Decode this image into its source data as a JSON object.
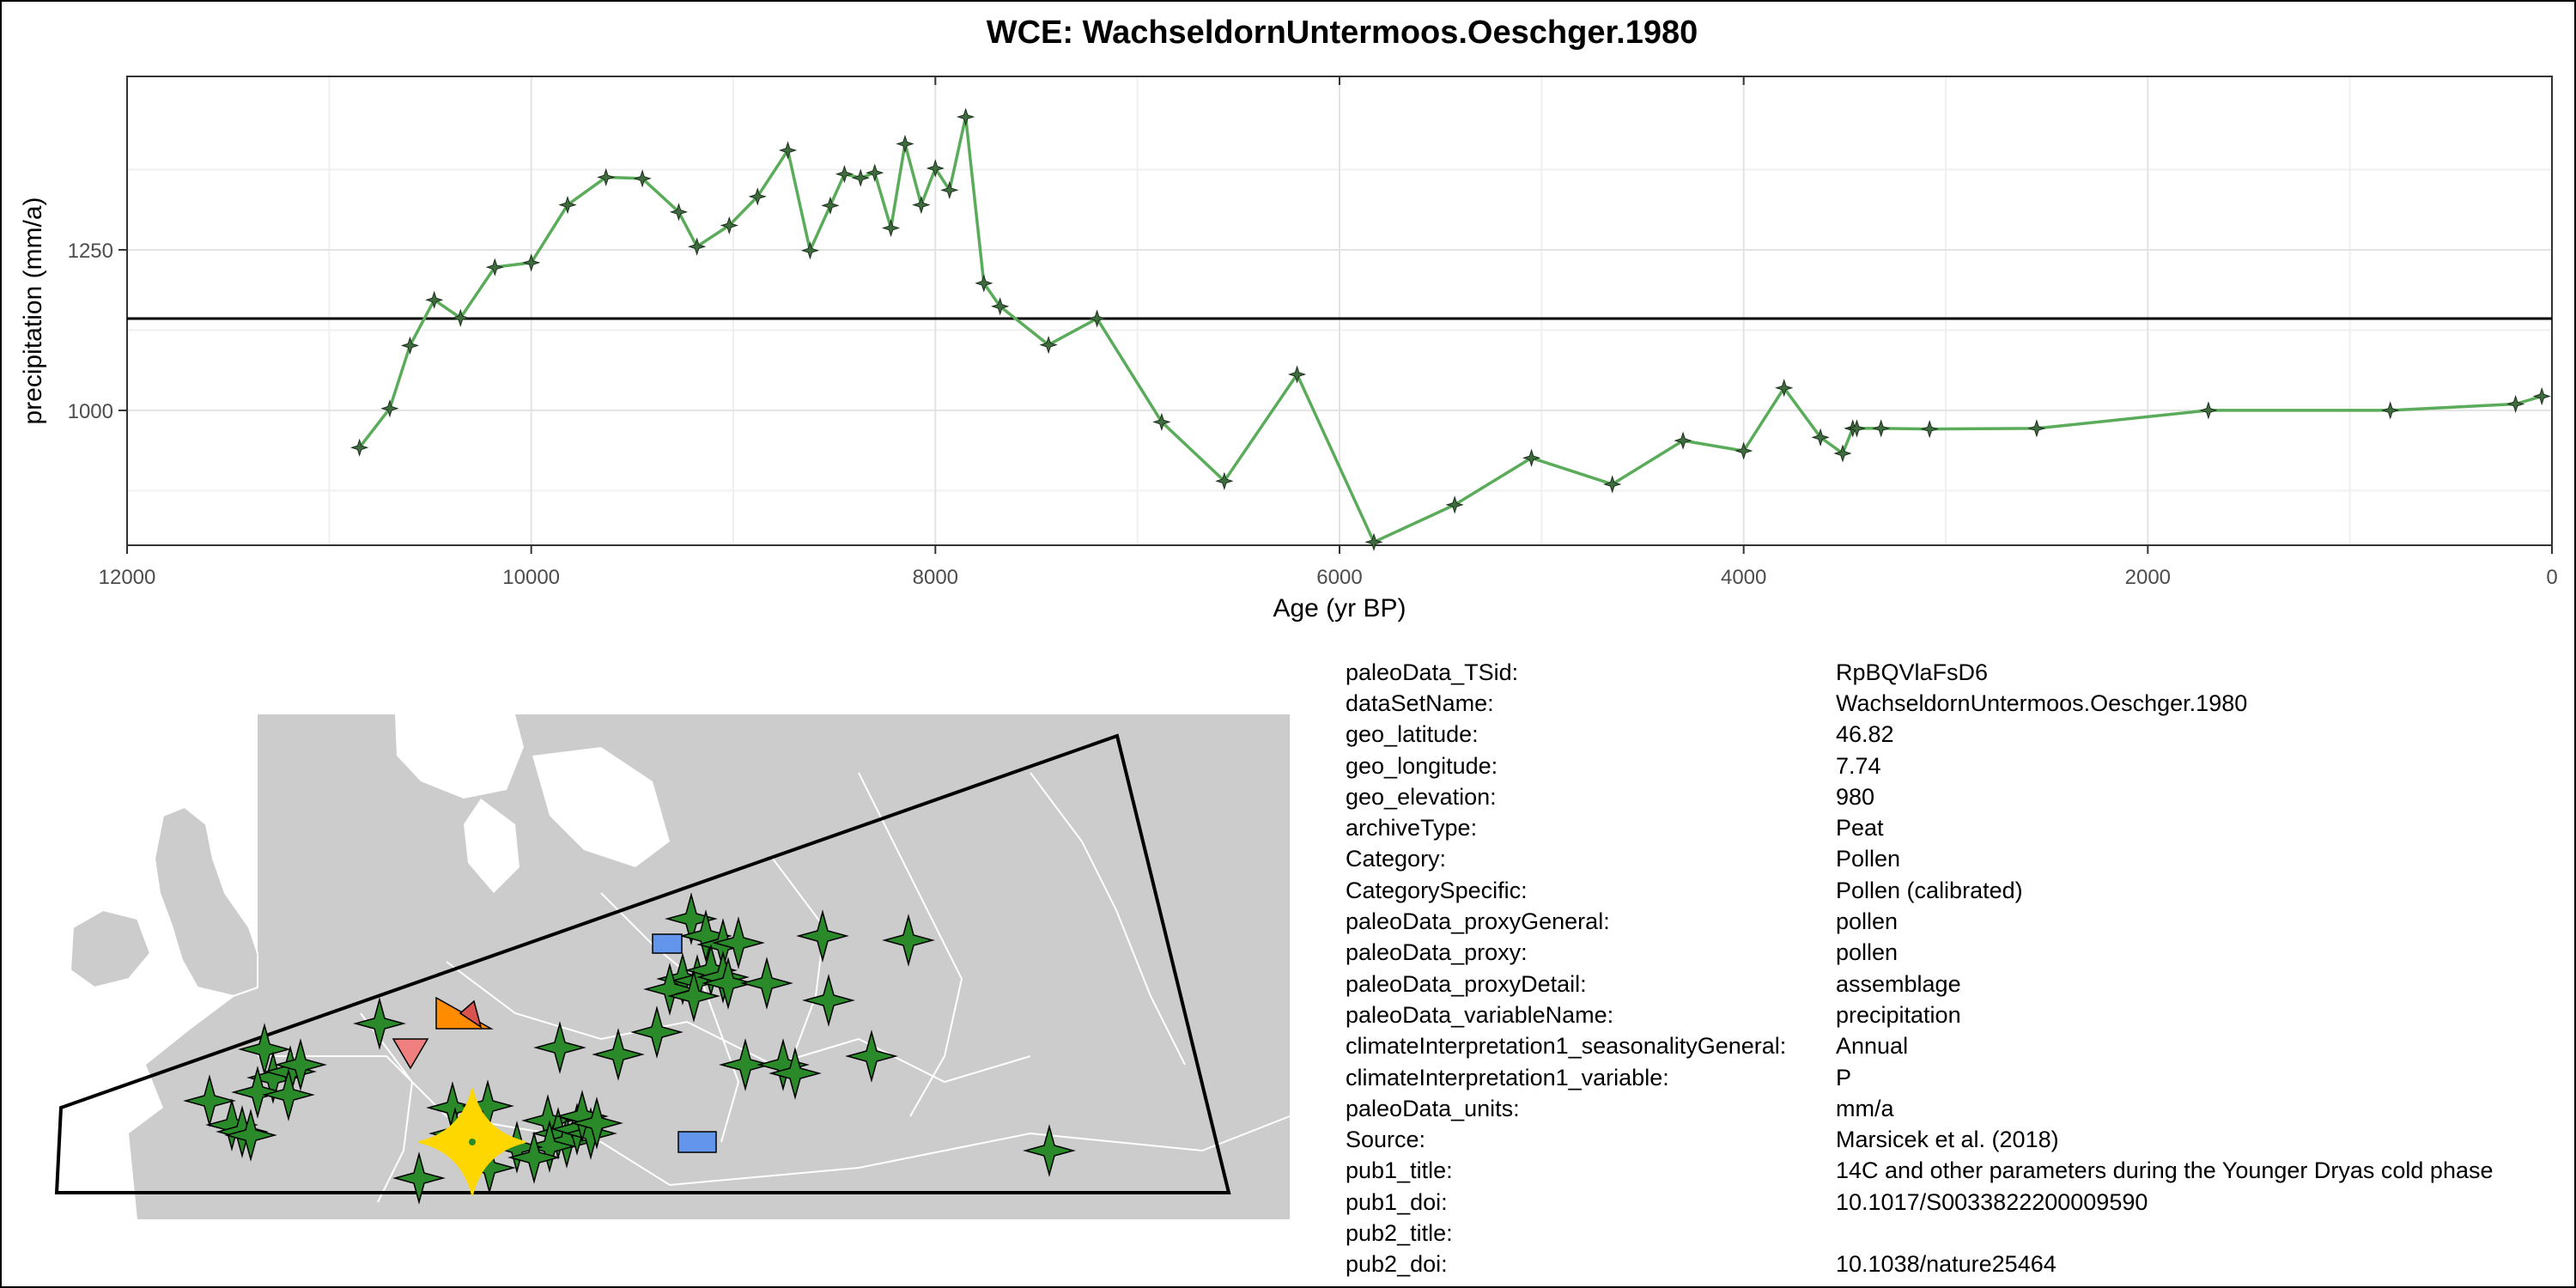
{
  "title": "WCE: WachseldornUntermoos.Oeschger.1980",
  "chart_data": {
    "type": "line",
    "title": "WCE: WachseldornUntermoos.Oeschger.1980",
    "xlabel": "Age (yr BP)",
    "ylabel": "precipitation (mm/a)",
    "xlim": [
      12000,
      0
    ],
    "ylim": [
      790,
      1520
    ],
    "x_reversed": true,
    "x_ticks": [
      12000,
      10000,
      8000,
      6000,
      4000,
      2000,
      0
    ],
    "y_ticks": [
      1000,
      1250
    ],
    "grid": true,
    "reference_line": 1143,
    "series": [
      {
        "color": "#5aab5a",
        "marker_color": "#3f6d3f",
        "x": [
          10850,
          10700,
          10600,
          10480,
          10350,
          10180,
          10000,
          9820,
          9630,
          9450,
          9270,
          9180,
          9020,
          8880,
          8730,
          8620,
          8520,
          8450,
          8370,
          8300,
          8220,
          8150,
          8070,
          8000,
          7930,
          7850,
          7760,
          7680,
          7440,
          7200,
          6880,
          6570,
          6210,
          5830,
          5430,
          5050,
          4650,
          4300,
          4000,
          3800,
          3620,
          3510,
          3460,
          3440,
          3320,
          3080,
          2550,
          1700,
          800,
          180,
          50
        ],
        "y": [
          942,
          1003,
          1101,
          1172,
          1144,
          1223,
          1230,
          1320,
          1363,
          1361,
          1309,
          1255,
          1288,
          1333,
          1405,
          1249,
          1319,
          1368,
          1362,
          1370,
          1284,
          1415,
          1320,
          1377,
          1343,
          1457,
          1198,
          1162,
          1102,
          1143,
          982,
          890,
          1056,
          795,
          853,
          926,
          885,
          953,
          937,
          1035,
          958,
          933,
          972,
          972,
          972,
          971,
          972,
          1000,
          1000,
          1010,
          1022
        ]
      }
    ]
  },
  "map": {
    "land_color": "#cccccc",
    "border_color": "#ffffff",
    "region_outline_color": "#000000",
    "site_color": "#FFD700",
    "markers": [
      {
        "shape": "star",
        "color": "#2a8a2a",
        "count": 60
      },
      {
        "shape": "square",
        "color": "#6495ED",
        "count": 2
      },
      {
        "shape": "triangle-right",
        "color": "#FF8C00",
        "count": 1
      },
      {
        "shape": "triangle-down",
        "color": "#F08080",
        "count": 1
      }
    ]
  },
  "metadata": [
    {
      "key": "paleoData_TSid:",
      "value": "RpBQVlaFsD6"
    },
    {
      "key": "dataSetName:",
      "value": "WachseldornUntermoos.Oeschger.1980"
    },
    {
      "key": "geo_latitude:",
      "value": "46.82"
    },
    {
      "key": "geo_longitude:",
      "value": "7.74"
    },
    {
      "key": "geo_elevation:",
      "value": "980"
    },
    {
      "key": "archiveType:",
      "value": "Peat"
    },
    {
      "key": "Category:",
      "value": "Pollen"
    },
    {
      "key": "CategorySpecific:",
      "value": "Pollen (calibrated)"
    },
    {
      "key": "paleoData_proxyGeneral:",
      "value": "pollen"
    },
    {
      "key": "paleoData_proxy:",
      "value": "pollen"
    },
    {
      "key": "paleoData_proxyDetail:",
      "value": "assemblage"
    },
    {
      "key": "paleoData_variableName:",
      "value": "precipitation"
    },
    {
      "key": "climateInterpretation1_seasonalityGeneral:",
      "value": "Annual"
    },
    {
      "key": "climateInterpretation1_variable:",
      "value": "P"
    },
    {
      "key": "paleoData_units:",
      "value": "mm/a"
    },
    {
      "key": "Source:",
      "value": "Marsicek et al. (2018)"
    },
    {
      "key": "pub1_title:",
      "value": "14C and other parameters during the Younger Dryas cold phase"
    },
    {
      "key": "pub1_doi:",
      "value": "10.1017/S0033822200009590"
    },
    {
      "key": "pub2_title:",
      "value": ""
    },
    {
      "key": "pub2_doi:",
      "value": "10.1038/nature25464"
    }
  ]
}
